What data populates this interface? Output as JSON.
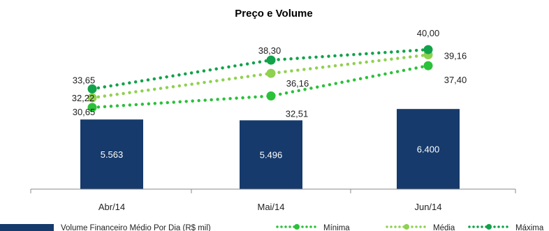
{
  "chart_data": {
    "type": "bar",
    "title": "Preço e Volume",
    "categories": [
      "Abr/14",
      "Mai/14",
      "Jun/14"
    ],
    "bar_series": {
      "name": "Volume Financeiro Médio Por Dia (R$ mil)",
      "values": [
        5563,
        5496,
        6400
      ],
      "labels": [
        "5.563",
        "5.496",
        "6.400"
      ],
      "color": "#163a6b"
    },
    "line_series": [
      {
        "name": "Mínima",
        "values": [
          30.65,
          32.51,
          37.4
        ],
        "labels": [
          "30,65",
          "32,51",
          "37,40"
        ],
        "color": "#2bc13a"
      },
      {
        "name": "Média",
        "values": [
          32.22,
          36.16,
          39.16
        ],
        "labels": [
          "32,22",
          "36,16",
          "39,16"
        ],
        "color": "#8fd150"
      },
      {
        "name": "Máxima",
        "values": [
          33.65,
          38.3,
          40.0
        ],
        "labels": [
          "33,65",
          "38,30",
          "40,00"
        ],
        "color": "#11a24a"
      }
    ],
    "legend_position": "bottom",
    "grid": false
  }
}
